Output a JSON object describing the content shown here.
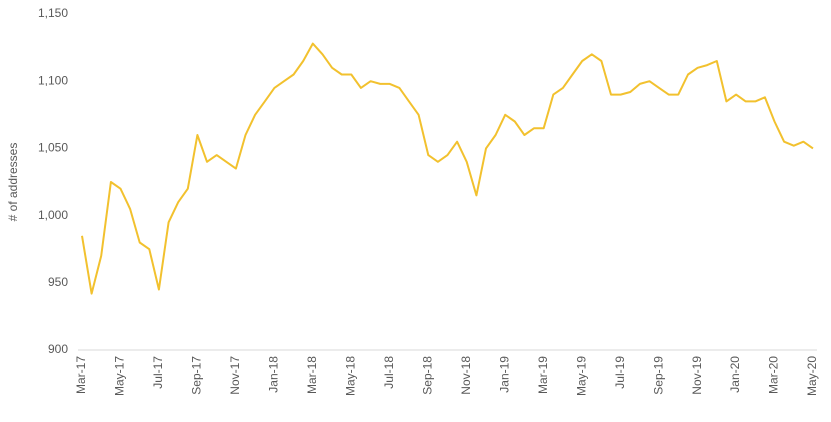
{
  "chart_data": {
    "type": "line",
    "y_label": "# of addresses",
    "categories": [
      "Mar-17",
      null,
      null,
      null,
      "May-17",
      null,
      null,
      null,
      "Jul-17",
      null,
      null,
      null,
      "Sep-17",
      null,
      null,
      null,
      "Nov-17",
      null,
      null,
      null,
      "Jan-18",
      null,
      null,
      null,
      "Mar-18",
      null,
      null,
      null,
      "May-18",
      null,
      null,
      null,
      "Jul-18",
      null,
      null,
      null,
      "Sep-18",
      null,
      null,
      null,
      "Nov-18",
      null,
      null,
      null,
      "Jan-19",
      null,
      null,
      null,
      "Mar-19",
      null,
      null,
      null,
      "May-19",
      null,
      null,
      null,
      "Jul-19",
      null,
      null,
      null,
      "Sep-19",
      null,
      null,
      null,
      "Nov-19",
      null,
      null,
      null,
      "Jan-20",
      null,
      null,
      null,
      "Mar-20",
      null,
      null,
      null,
      "May-20"
    ],
    "series": [
      {
        "color": "#f2c12e",
        "values": [
          985,
          942,
          970,
          1025,
          1020,
          1005,
          980,
          975,
          945,
          995,
          1010,
          1020,
          1060,
          1040,
          1045,
          1040,
          1035,
          1060,
          1075,
          1085,
          1095,
          1100,
          1105,
          1115,
          1128,
          1120,
          1110,
          1105,
          1105,
          1095,
          1100,
          1098,
          1098,
          1095,
          1085,
          1075,
          1045,
          1040,
          1045,
          1055,
          1040,
          1015,
          1050,
          1060,
          1075,
          1070,
          1060,
          1065,
          1065,
          1090,
          1095,
          1105,
          1115,
          1120,
          1115,
          1090,
          1090,
          1092,
          1098,
          1100,
          1095,
          1090,
          1090,
          1105,
          1110,
          1112,
          1115,
          1085,
          1090,
          1085,
          1085,
          1088,
          1070,
          1055,
          1052,
          1055,
          1050
        ]
      }
    ],
    "ylim": [
      900,
      1150
    ],
    "yticks": [
      900,
      950,
      {
        "value": 1000,
        "label": "1,000"
      },
      {
        "value": 1050,
        "label": "1,050"
      },
      {
        "value": 1100,
        "label": "1,100"
      },
      {
        "value": 1150,
        "label": "1,150"
      }
    ],
    "grid": false
  }
}
